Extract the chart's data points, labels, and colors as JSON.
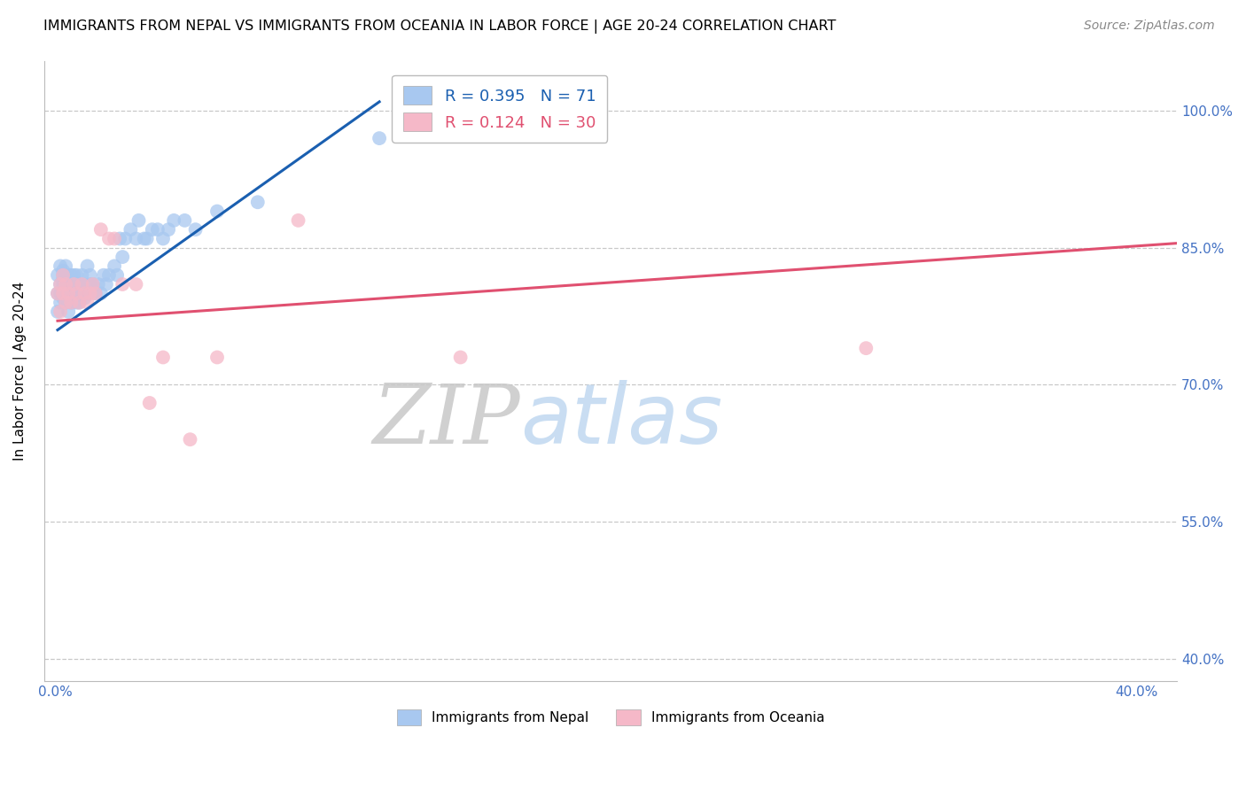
{
  "title": "IMMIGRANTS FROM NEPAL VS IMMIGRANTS FROM OCEANIA IN LABOR FORCE | AGE 20-24 CORRELATION CHART",
  "source": "Source: ZipAtlas.com",
  "ylabel": "In Labor Force | Age 20-24",
  "legend_labels": [
    "Immigrants from Nepal",
    "Immigrants from Oceania"
  ],
  "legend_r_nepal": "R = 0.395",
  "legend_n_nepal": "N = 71",
  "legend_r_oceania": "R = 0.124",
  "legend_n_oceania": "N = 30",
  "y_ticks": [
    0.4,
    0.55,
    0.7,
    0.85,
    1.0
  ],
  "y_tick_labels": [
    "40.0%",
    "55.0%",
    "70.0%",
    "85.0%",
    "100.0%"
  ],
  "x_ticks": [
    0.0,
    0.05,
    0.1,
    0.15,
    0.2,
    0.25,
    0.3,
    0.35,
    0.4
  ],
  "x_tick_labels": [
    "0.0%",
    "",
    "",
    "",
    "",
    "",
    "",
    "",
    "40.0%"
  ],
  "xlim": [
    -0.004,
    0.415
  ],
  "ylim": [
    0.375,
    1.055
  ],
  "nepal_color": "#a8c8f0",
  "oceania_color": "#f5b8c8",
  "nepal_line_color": "#1a5fb0",
  "oceania_line_color": "#e05070",
  "nepal_scatter_x": [
    0.001,
    0.001,
    0.001,
    0.002,
    0.002,
    0.002,
    0.002,
    0.003,
    0.003,
    0.003,
    0.003,
    0.003,
    0.003,
    0.004,
    0.004,
    0.004,
    0.004,
    0.004,
    0.005,
    0.005,
    0.005,
    0.005,
    0.006,
    0.006,
    0.006,
    0.006,
    0.007,
    0.007,
    0.007,
    0.008,
    0.008,
    0.008,
    0.008,
    0.009,
    0.009,
    0.009,
    0.01,
    0.01,
    0.01,
    0.011,
    0.012,
    0.012,
    0.013,
    0.013,
    0.014,
    0.015,
    0.016,
    0.017,
    0.018,
    0.019,
    0.02,
    0.022,
    0.023,
    0.024,
    0.025,
    0.026,
    0.028,
    0.03,
    0.031,
    0.033,
    0.034,
    0.036,
    0.038,
    0.04,
    0.042,
    0.044,
    0.048,
    0.052,
    0.06,
    0.075,
    0.12
  ],
  "nepal_scatter_y": [
    0.8,
    0.82,
    0.78,
    0.81,
    0.79,
    0.83,
    0.8,
    0.815,
    0.795,
    0.825,
    0.8,
    0.81,
    0.82,
    0.79,
    0.81,
    0.8,
    0.82,
    0.83,
    0.78,
    0.8,
    0.82,
    0.8,
    0.82,
    0.8,
    0.81,
    0.79,
    0.81,
    0.82,
    0.8,
    0.81,
    0.79,
    0.82,
    0.8,
    0.8,
    0.81,
    0.79,
    0.81,
    0.8,
    0.82,
    0.795,
    0.83,
    0.8,
    0.81,
    0.82,
    0.81,
    0.8,
    0.81,
    0.8,
    0.82,
    0.81,
    0.82,
    0.83,
    0.82,
    0.86,
    0.84,
    0.86,
    0.87,
    0.86,
    0.88,
    0.86,
    0.86,
    0.87,
    0.87,
    0.86,
    0.87,
    0.88,
    0.88,
    0.87,
    0.89,
    0.9,
    0.97
  ],
  "oceania_scatter_x": [
    0.001,
    0.002,
    0.002,
    0.003,
    0.003,
    0.004,
    0.004,
    0.005,
    0.006,
    0.007,
    0.008,
    0.009,
    0.01,
    0.011,
    0.012,
    0.013,
    0.014,
    0.015,
    0.017,
    0.02,
    0.022,
    0.025,
    0.03,
    0.035,
    0.04,
    0.05,
    0.06,
    0.09,
    0.15,
    0.3
  ],
  "oceania_scatter_y": [
    0.8,
    0.81,
    0.78,
    0.82,
    0.8,
    0.79,
    0.81,
    0.8,
    0.79,
    0.81,
    0.8,
    0.79,
    0.81,
    0.8,
    0.79,
    0.8,
    0.81,
    0.8,
    0.87,
    0.86,
    0.86,
    0.81,
    0.81,
    0.68,
    0.73,
    0.64,
    0.73,
    0.88,
    0.73,
    0.74
  ],
  "nepal_trendline_x": [
    0.001,
    0.12
  ],
  "nepal_trendline_y": [
    0.76,
    1.01
  ],
  "oceania_trendline_x": [
    0.001,
    0.415
  ],
  "oceania_trendline_y": [
    0.77,
    0.855
  ],
  "background_color": "#ffffff",
  "grid_color": "#c8c8c8",
  "tick_color": "#4472c4",
  "title_fontsize": 11.5,
  "source_fontsize": 10,
  "axis_label_fontsize": 11,
  "tick_fontsize": 11,
  "legend_fontsize": 13
}
